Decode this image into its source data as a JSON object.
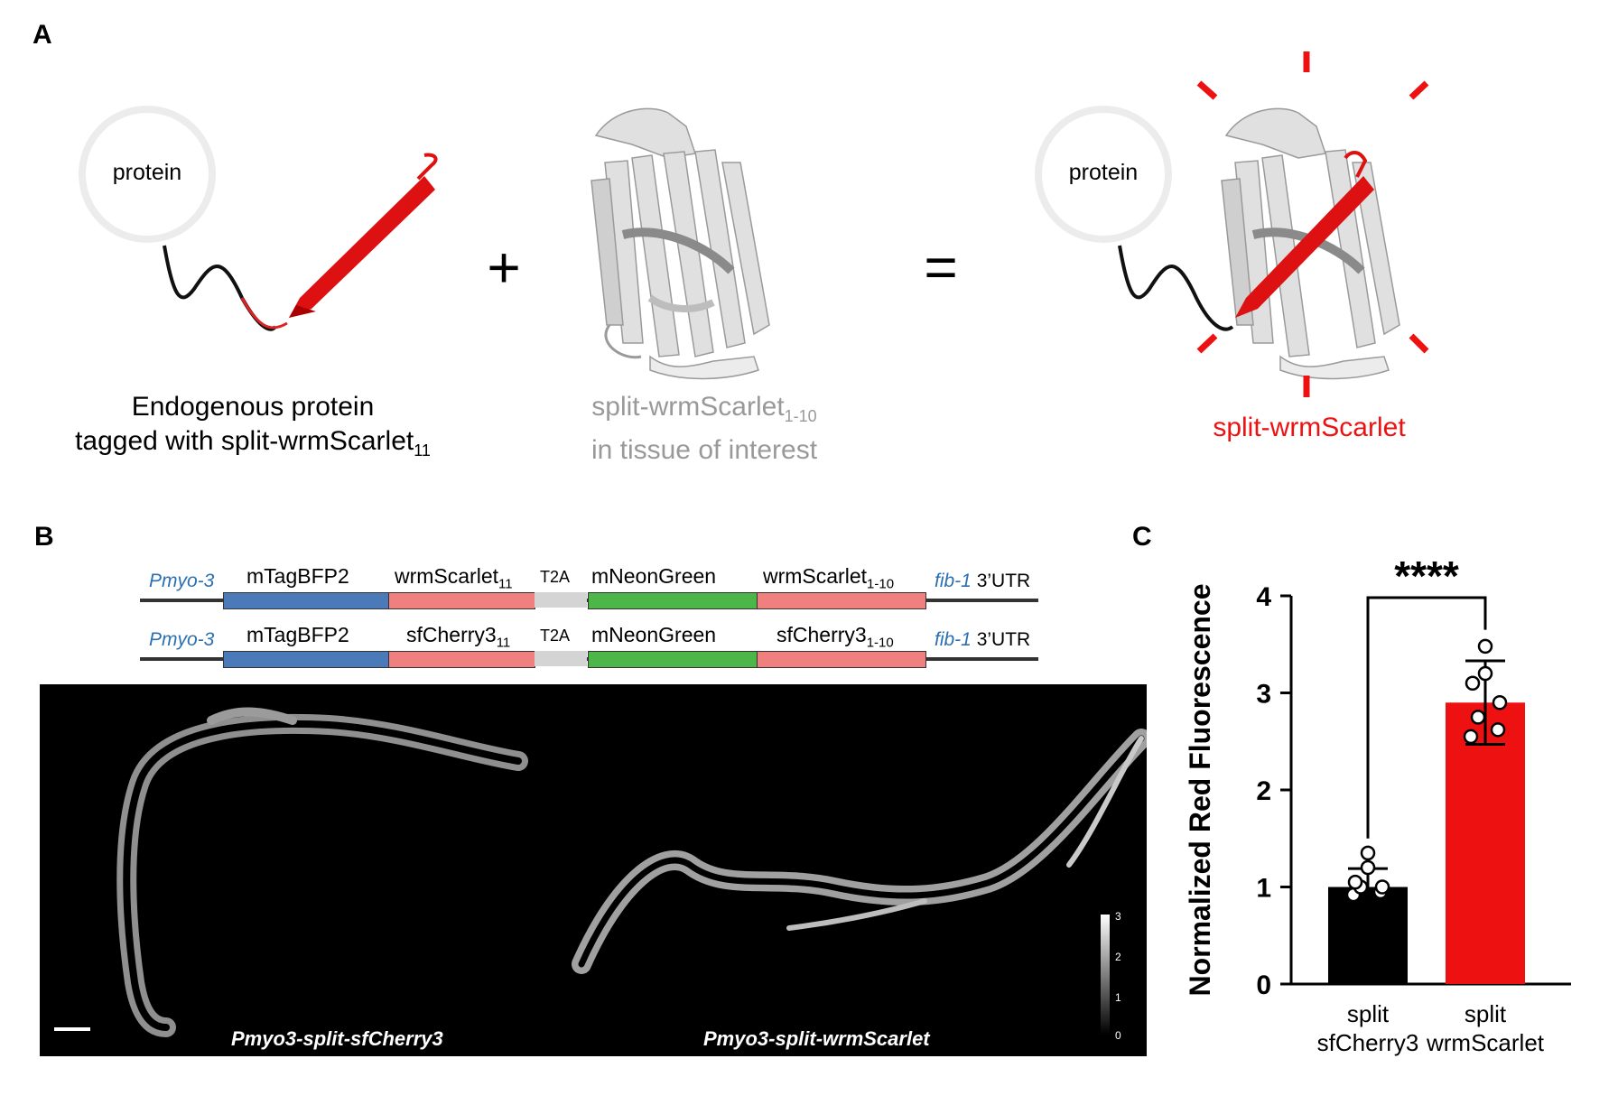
{
  "panel_a": {
    "label": "A",
    "protein_left": "protein",
    "protein_right": "protein",
    "plus": "+",
    "equals": "=",
    "caption_left_line1": "Endogenous protein",
    "caption_left_line2": "tagged with split-wrmScarlet",
    "caption_left_sub": "11",
    "caption_mid_line1": "split-wrmScarlet",
    "caption_mid_sub": "1-10",
    "caption_mid_line2": "in tissue of interest",
    "caption_right": "split-wrmScarlet"
  },
  "panel_b": {
    "label": "B",
    "constructs": [
      {
        "promoter": "Pmyo-3",
        "seg1": "mTagBFP2",
        "seg2": "wrmScarlet",
        "seg2_sub": "11",
        "linker": "T2A",
        "seg3": "mNeonGreen",
        "seg4": "wrmScarlet",
        "seg4_sub": "1-10",
        "utr_gene": "fib-1",
        "utr_text": " 3’UTR"
      },
      {
        "promoter": "Pmyo-3",
        "seg1": "mTagBFP2",
        "seg2": "sfCherry3",
        "seg2_sub": "11",
        "linker": "T2A",
        "seg3": "mNeonGreen",
        "seg4": "sfCherry3",
        "seg4_sub": "1-10",
        "utr_gene": "fib-1",
        "utr_text": " 3’UTR"
      }
    ],
    "worm_left_label": "Pmyo3-split-sfCherry3",
    "worm_right_label": "Pmyo3-split-wrmScarlet",
    "colorbar_ticks": [
      "3",
      "2",
      "1",
      "0"
    ]
  },
  "panel_c": {
    "label": "C"
  },
  "colors": {
    "red": "#ee1111",
    "salmon": "#f08080",
    "blue": "#4a7ab7",
    "green": "#4cb648",
    "linker_gray": "#d4d4d4",
    "promoter_blue": "#2c6fb0"
  },
  "chart_data": {
    "type": "bar",
    "categories": [
      "split\nsfCherry3",
      "split\nwrmScarlet"
    ],
    "category_lines": [
      [
        "split",
        "sfCherry3"
      ],
      [
        "split",
        "wrmScarlet"
      ]
    ],
    "values": [
      1.0,
      2.9
    ],
    "error": [
      0.19,
      0.43
    ],
    "bar_colors": [
      "#000000",
      "#ee1111"
    ],
    "points": [
      [
        0.92,
        0.95,
        1.0,
        1.0,
        1.05,
        1.2,
        1.35
      ],
      [
        2.55,
        2.62,
        2.75,
        2.9,
        3.1,
        3.2,
        3.48
      ]
    ],
    "ylabel": "Normalized Red Fluorescence",
    "ylim": [
      0,
      4
    ],
    "yticks": [
      0,
      1,
      2,
      3,
      4
    ],
    "significance": "****",
    "grid": false
  }
}
